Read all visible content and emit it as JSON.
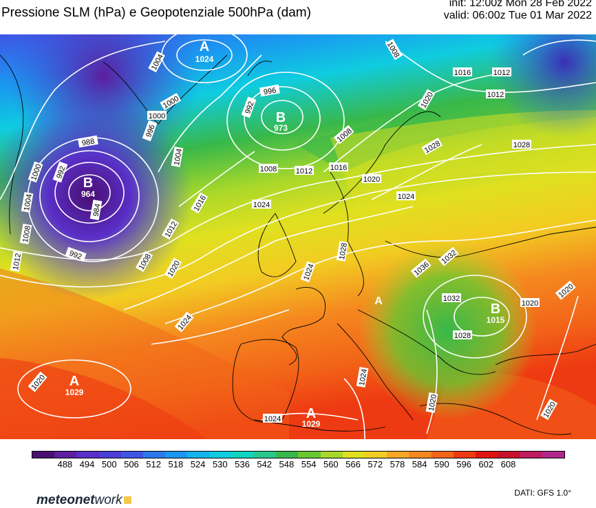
{
  "header": {
    "title": "Pressione SLM (hPa) e Geopotenziale 500hPa (dam)",
    "init": "init: 12:00z Mon 28 Feb 2022",
    "valid": "valid: 06:00z Tue 01 Mar 2022"
  },
  "legend": {
    "ticks": [
      "488",
      "494",
      "500",
      "506",
      "512",
      "518",
      "524",
      "530",
      "536",
      "542",
      "548",
      "554",
      "560",
      "566",
      "572",
      "578",
      "584",
      "590",
      "596",
      "602",
      "608"
    ],
    "colors": [
      "#4a0f70",
      "#5b1fa0",
      "#5a2fc8",
      "#4a3fd8",
      "#3f55e6",
      "#2c79ee",
      "#1a97f0",
      "#12b4ec",
      "#0fcce0",
      "#10d4c0",
      "#28c88e",
      "#38b84a",
      "#68c830",
      "#a8d82a",
      "#e0e020",
      "#f2cc22",
      "#f6a824",
      "#f5871f",
      "#f26418",
      "#ee3a12",
      "#e01410",
      "#c8102c",
      "#c01a60",
      "#b0288c"
    ]
  },
  "centers": [
    {
      "type": "A",
      "value": "1024"
    },
    {
      "type": "B",
      "value": "973"
    },
    {
      "type": "B",
      "value": "964"
    },
    {
      "type": "A",
      "value": "1029"
    },
    {
      "type": "A",
      "value": "1029"
    },
    {
      "type": "B",
      "value": "1015"
    },
    {
      "type": "A",
      "value": ""
    }
  ],
  "isobar_labels": [
    "1004",
    "1000",
    "996",
    "1008",
    "992",
    "1000",
    "996",
    "988",
    "1004",
    "1000",
    "992",
    "1004",
    "1008",
    "1012",
    "984",
    "992",
    "1008",
    "1012",
    "1016",
    "1008",
    "1012",
    "1016",
    "1024",
    "1020",
    "1020",
    "1024",
    "1024",
    "1028",
    "1028",
    "1008",
    "1016",
    "1012",
    "1020",
    "1012",
    "1024",
    "1028",
    "1020",
    "1032",
    "1036",
    "1032",
    "1028",
    "1020",
    "1020",
    "1024",
    "1024",
    "1020",
    "1020"
  ],
  "footer": {
    "logo_main": "meteonet",
    "logo_accent": "work",
    "credit": "DATI: GFS 1.0°"
  }
}
